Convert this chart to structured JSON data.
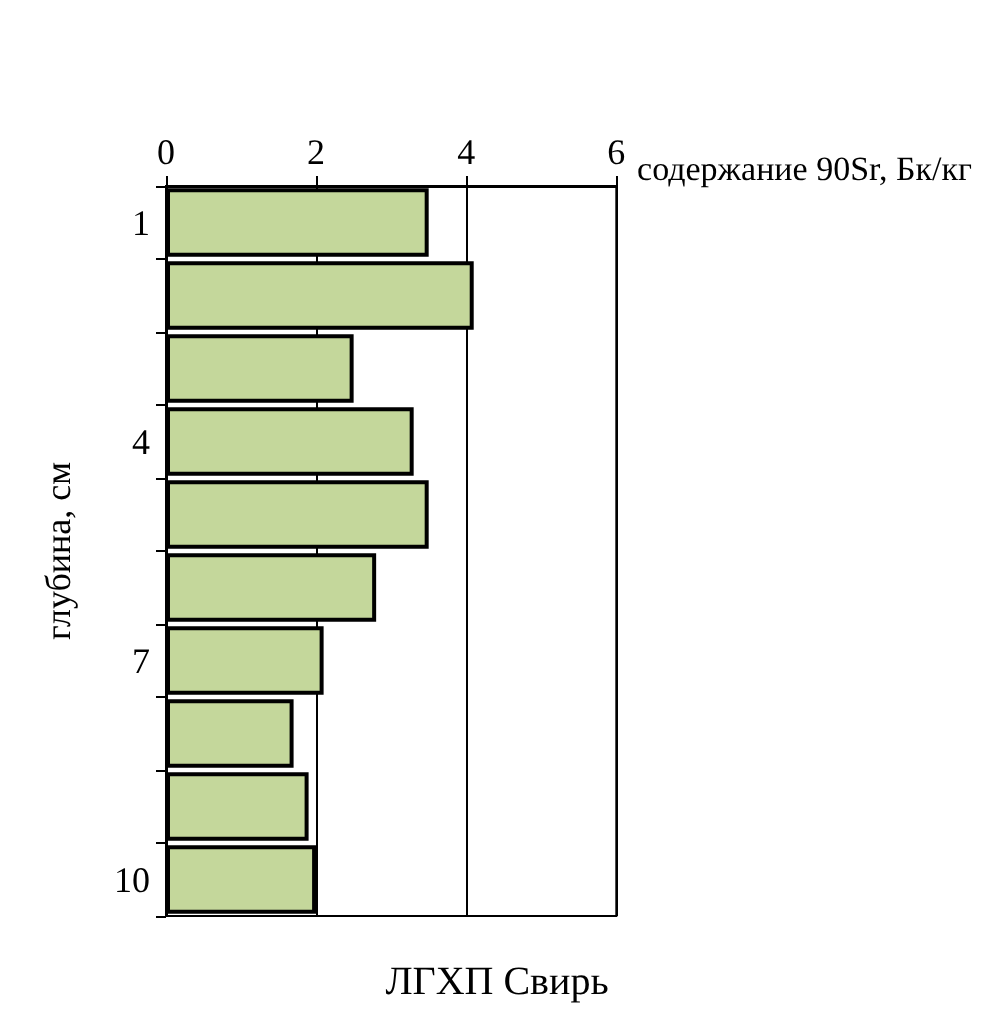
{
  "chart_data": {
    "type": "bar",
    "orientation": "horizontal",
    "title": "ЛГХП Свирь",
    "xlabel": "содержание 90Sr, Бк/кг",
    "ylabel": "глубина, см",
    "categories": [
      "1",
      null,
      null,
      "4",
      null,
      null,
      "7",
      null,
      null,
      "10"
    ],
    "values": [
      3.5,
      4.1,
      2.5,
      3.3,
      3.5,
      2.8,
      2.1,
      1.7,
      1.9,
      2.0
    ],
    "color": "#c4d79b",
    "xlim": [
      0,
      6
    ],
    "xticks": [
      0,
      2,
      4,
      6
    ],
    "grid": "x"
  }
}
